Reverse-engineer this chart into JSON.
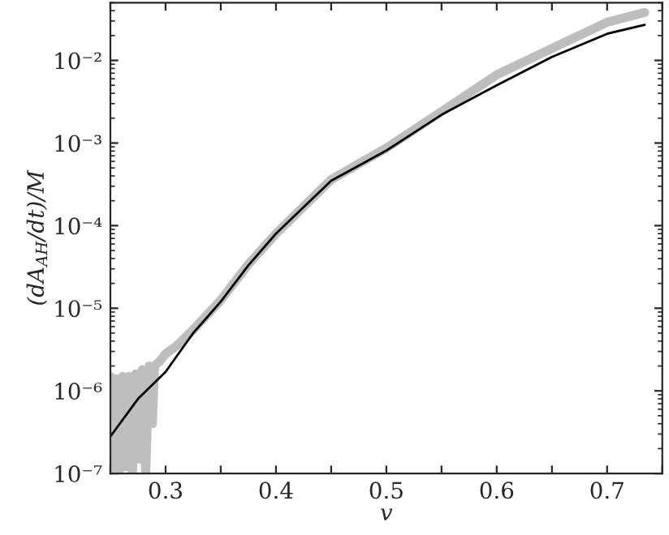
{
  "chart_data": {
    "type": "line",
    "xlabel": "v",
    "ylabel": "(dA$_{AH}$/dt)/M",
    "log": "y",
    "grid": false,
    "legend": false,
    "marker": "none",
    "line_style": "solid",
    "xlim": [
      0.25,
      0.75
    ],
    "ylim": [
      1e-07,
      0.05
    ],
    "xticks": [
      {
        "value": 0.25,
        "label": null
      },
      0.3,
      {
        "value": 0.35,
        "label": null
      },
      0.4,
      {
        "value": 0.45,
        "label": null
      },
      0.5,
      {
        "value": 0.55,
        "label": null
      },
      0.6,
      {
        "value": 0.65,
        "label": null
      },
      0.7,
      {
        "value": 0.75,
        "label": null
      }
    ],
    "yticks": [
      {
        "value": 1e-07,
        "label": "10⁻⁷"
      },
      {
        "value": 1e-06,
        "label": "10⁻⁶"
      },
      {
        "value": 1e-05,
        "label": "10⁻⁵"
      },
      {
        "value": 0.0001,
        "label": "10⁻⁴"
      },
      {
        "value": 0.001,
        "label": "10⁻³"
      },
      {
        "value": 0.01,
        "label": "10⁻²"
      }
    ],
    "series": [
      {
        "color": "#bebebe",
        "x": [
          0.25,
          0.252,
          0.255,
          0.258,
          0.261,
          0.264,
          0.267,
          0.27,
          0.273,
          0.276,
          0.279,
          0.282,
          0.285,
          0.288,
          0.29,
          0.295,
          0.3,
          0.31,
          0.325,
          0.35,
          0.375,
          0.4,
          0.45,
          0.5,
          0.55,
          0.6,
          0.65,
          0.7,
          0.734
        ],
        "values": [
          1.5e-06,
          1e-07,
          1.4e-06,
          1e-07,
          1.5e-06,
          1.2e-07,
          1.5e-06,
          1e-07,
          1.6e-06,
          1.5e-07,
          1.8e-06,
          1e-07,
          2e-06,
          4e-07,
          2e-06,
          2.3e-06,
          2.8e-06,
          3.5e-06,
          5.5e-06,
          1.25e-05,
          3.4e-05,
          8e-05,
          0.00036,
          0.00087,
          0.0024,
          0.0067,
          0.014,
          0.029,
          0.038
        ]
      },
      {
        "color": "#000000",
        "x": [
          0.25,
          0.275,
          0.3,
          0.325,
          0.35,
          0.375,
          0.4,
          0.45,
          0.5,
          0.55,
          0.6,
          0.65,
          0.7,
          0.734
        ],
        "values": [
          2.8e-07,
          8e-07,
          1.7e-06,
          5e-06,
          1.2e-05,
          3.3e-05,
          8e-05,
          0.00035,
          0.00081,
          0.0022,
          0.005,
          0.011,
          0.021,
          0.027
        ]
      }
    ]
  }
}
